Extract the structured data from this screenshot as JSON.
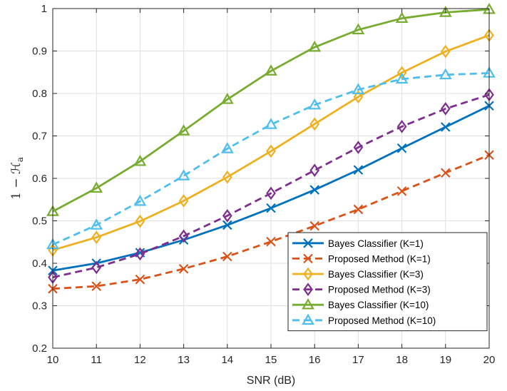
{
  "chart_data": {
    "type": "line",
    "xlabel": "SNR (dB)",
    "ylabel": {
      "main": "1 − ℋ",
      "sub": "a"
    },
    "xlim": [
      10,
      20
    ],
    "ylim": [
      0.2,
      1
    ],
    "xticks": [
      "10",
      "11",
      "12",
      "13",
      "14",
      "15",
      "16",
      "17",
      "18",
      "19",
      "20"
    ],
    "yticks": [
      "0.2",
      "0.3",
      "0.4",
      "0.5",
      "0.6",
      "0.7",
      "0.8",
      "0.9",
      "1"
    ],
    "grid": true,
    "legend_position": "bottom-right",
    "x": [
      10,
      11,
      12,
      13,
      14,
      15,
      16,
      17,
      18,
      19,
      20
    ],
    "series": [
      {
        "name": "Bayes Classifier (K=1)",
        "color": "#0072BD",
        "dash": "solid",
        "marker": "x",
        "values": [
          0.383,
          0.4,
          0.425,
          0.455,
          0.49,
          0.53,
          0.573,
          0.62,
          0.671,
          0.721,
          0.771
        ]
      },
      {
        "name": "Proposed Method (K=1)",
        "color": "#D95319",
        "dash": "dashed",
        "marker": "x",
        "values": [
          0.34,
          0.346,
          0.362,
          0.387,
          0.416,
          0.451,
          0.488,
          0.527,
          0.57,
          0.613,
          0.655
        ]
      },
      {
        "name": "Bayes Classifier (K=3)",
        "color": "#EDB120",
        "dash": "solid",
        "marker": "diamond",
        "values": [
          0.431,
          0.461,
          0.499,
          0.547,
          0.603,
          0.664,
          0.728,
          0.792,
          0.849,
          0.899,
          0.937
        ]
      },
      {
        "name": "Proposed Method (K=3)",
        "color": "#7E2F8E",
        "dash": "dashed",
        "marker": "diamond",
        "values": [
          0.367,
          0.39,
          0.422,
          0.464,
          0.512,
          0.565,
          0.619,
          0.673,
          0.722,
          0.764,
          0.797
        ]
      },
      {
        "name": "Bayes Classifier (K=10)",
        "color": "#77AC30",
        "dash": "solid",
        "marker": "triangle",
        "values": [
          0.522,
          0.577,
          0.64,
          0.712,
          0.786,
          0.853,
          0.909,
          0.95,
          0.977,
          0.991,
          0.998
        ]
      },
      {
        "name": "Proposed Method (K=10)",
        "color": "#4DBEEE",
        "dash": "dashed",
        "marker": "triangle",
        "values": [
          0.444,
          0.49,
          0.546,
          0.606,
          0.67,
          0.727,
          0.773,
          0.809,
          0.834,
          0.844,
          0.848
        ]
      }
    ]
  }
}
